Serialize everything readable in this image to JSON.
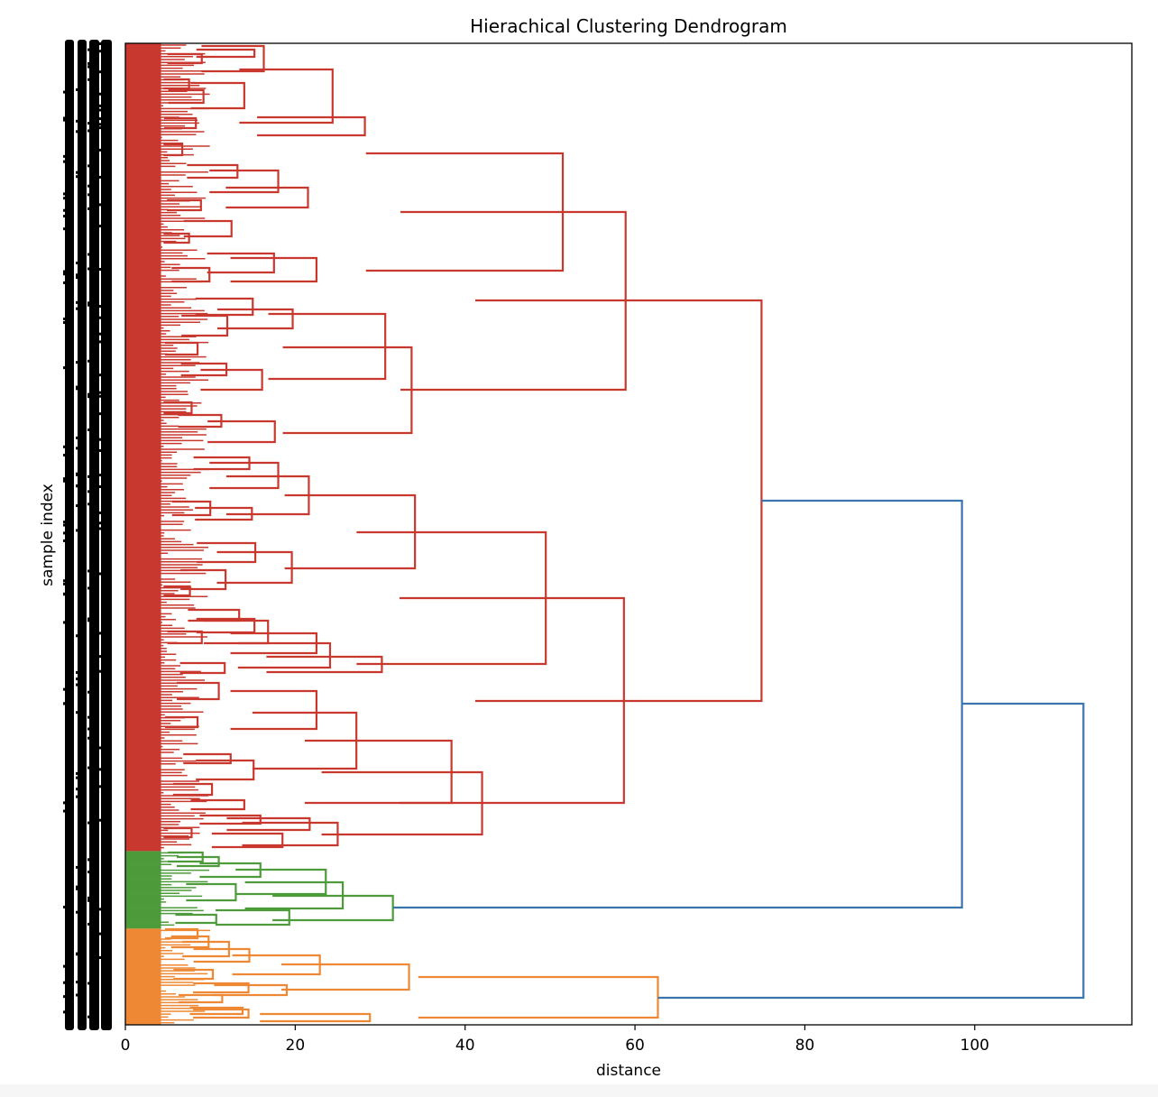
{
  "chart_data": {
    "type": "dendrogram",
    "orientation": "left",
    "title": "Hierachical Clustering Dendrogram",
    "xlabel": "distance",
    "ylabel": "sample index",
    "xlim": [
      0,
      118.5
    ],
    "xticks": [
      0,
      20,
      40,
      60,
      80,
      100
    ],
    "leaf_labels_note": "dense illegible sample index leaf labels on left axis",
    "colors": {
      "cluster_red": "#c8382f",
      "cluster_green": "#4d9b3a",
      "cluster_orange": "#ee8834",
      "above_threshold": "#3a75ad"
    },
    "clusters": [
      {
        "name": "red cluster",
        "color": "#c8382f",
        "leaf_fraction": [
          0.0,
          0.823
        ]
      },
      {
        "name": "green cluster",
        "color": "#4d9b3a",
        "leaf_fraction": [
          0.823,
          0.902
        ]
      },
      {
        "name": "orange cluster",
        "color": "#ee8834",
        "leaf_fraction": [
          0.902,
          1.0
        ]
      }
    ],
    "top_merges": [
      {
        "height": 112.8,
        "joins": [
          "red+green",
          "orange"
        ],
        "color": "#3a75ad"
      },
      {
        "height": 98.5,
        "joins": [
          "red",
          "green"
        ],
        "color": "#3a75ad"
      },
      {
        "height": 74.9,
        "joins": [
          "red sub A",
          "red sub B"
        ],
        "color": "#c8382f"
      },
      {
        "height": 62.7,
        "joins": [
          "orange sub A",
          "orange sub B"
        ],
        "color": "#ee8834"
      },
      {
        "height": 31.5,
        "joins": [
          "green sub A",
          "green sub B"
        ],
        "color": "#4d9b3a"
      }
    ],
    "red_links": [
      [
        15.2,
        55,
        63,
        59
      ],
      [
        16.3,
        51,
        79,
        67
      ],
      [
        24.4,
        77,
        136,
        106
      ],
      [
        14.0,
        92,
        120,
        136
      ],
      [
        28.2,
        150,
        130,
        78
      ],
      [
        51.5,
        170,
        300,
        255
      ],
      [
        58.9,
        235,
        432,
        352
      ],
      [
        13.2,
        183,
        197,
        190
      ],
      [
        18.0,
        189,
        213,
        203
      ],
      [
        21.5,
        208,
        230,
        216
      ],
      [
        12.5,
        245,
        262,
        254
      ],
      [
        17.5,
        281,
        302,
        291
      ],
      [
        22.5,
        286,
        312,
        299
      ],
      [
        15.0,
        331,
        349,
        341
      ],
      [
        19.7,
        343,
        364,
        352
      ],
      [
        30.6,
        348,
        420,
        396
      ],
      [
        12.0,
        350,
        372,
        361
      ],
      [
        11.9,
        403,
        416,
        410
      ],
      [
        16.1,
        410,
        432,
        420
      ],
      [
        33.7,
        385,
        480,
        433
      ],
      [
        11.3,
        460,
        473,
        467
      ],
      [
        17.6,
        467,
        490,
        478
      ],
      [
        14.6,
        507,
        520,
        513
      ],
      [
        18.0,
        513,
        541,
        527
      ],
      [
        21.6,
        528,
        570,
        547
      ],
      [
        14.9,
        563,
        576,
        570
      ],
      [
        34.1,
        549,
        630,
        588
      ],
      [
        15.3,
        602,
        623,
        611
      ],
      [
        19.6,
        612,
        646,
        629
      ],
      [
        11.8,
        632,
        653,
        641
      ],
      [
        49.5,
        590,
        736,
        663
      ],
      [
        13.4,
        676,
        688,
        681
      ],
      [
        15.2,
        686,
        701,
        693
      ],
      [
        16.8,
        688,
        713,
        700
      ],
      [
        22.5,
        702,
        724,
        713
      ],
      [
        24.1,
        713,
        740,
        727
      ],
      [
        30.2,
        728,
        745,
        737
      ],
      [
        11.7,
        735,
        746,
        740
      ],
      [
        58.7,
        663,
        890,
        777
      ],
      [
        74.9,
        333,
        777,
        555
      ],
      [
        11.0,
        757,
        775,
        766
      ],
      [
        22.5,
        766,
        808,
        787
      ],
      [
        27.2,
        790,
        852,
        821
      ],
      [
        12.4,
        836,
        846,
        841
      ],
      [
        15.1,
        843,
        864,
        853
      ],
      [
        38.4,
        821,
        890,
        856
      ],
      [
        14.0,
        887,
        897,
        892
      ],
      [
        15.9,
        904,
        913,
        908
      ],
      [
        21.7,
        907,
        920,
        913
      ],
      [
        25.0,
        912,
        937,
        925
      ],
      [
        18.5,
        924,
        939,
        931
      ],
      [
        42.0,
        856,
        925,
        891
      ],
      [
        9.0,
        60,
        70,
        65
      ],
      [
        7.5,
        88,
        98,
        93
      ],
      [
        9.2,
        100,
        114,
        107
      ],
      [
        8.3,
        131,
        142,
        136
      ],
      [
        6.7,
        160,
        172,
        166
      ],
      [
        8.9,
        222,
        233,
        227
      ],
      [
        7.5,
        259,
        269,
        264
      ],
      [
        9.9,
        297,
        312,
        304
      ],
      [
        8.5,
        380,
        393,
        386
      ],
      [
        7.8,
        446,
        458,
        452
      ],
      [
        10.0,
        556,
        571,
        563
      ],
      [
        7.6,
        650,
        660,
        655
      ],
      [
        9.0,
        700,
        713,
        706
      ],
      [
        8.5,
        795,
        806,
        800
      ],
      [
        10.2,
        869,
        881,
        875
      ],
      [
        7.8,
        918,
        928,
        923
      ]
    ],
    "green_links": [
      [
        11.0,
        950,
        960,
        955
      ],
      [
        15.9,
        957,
        972,
        964
      ],
      [
        23.6,
        964,
        991,
        977
      ],
      [
        13.0,
        980,
        998,
        989
      ],
      [
        25.6,
        978,
        1007,
        993
      ],
      [
        31.5,
        993,
        1020,
        1006
      ],
      [
        19.3,
        1009,
        1025,
        1017
      ],
      [
        10.7,
        1014,
        1023,
        1018
      ],
      [
        9.1,
        945,
        955,
        950
      ]
    ],
    "orange_links": [
      [
        9.8,
        1038,
        1050,
        1044
      ],
      [
        12.2,
        1044,
        1060,
        1052
      ],
      [
        14.6,
        1052,
        1066,
        1059
      ],
      [
        22.9,
        1059,
        1080,
        1069
      ],
      [
        33.4,
        1069,
        1097,
        1083
      ],
      [
        14.5,
        1090,
        1100,
        1095
      ],
      [
        19.0,
        1092,
        1103,
        1097
      ],
      [
        11.4,
        1103,
        1111,
        1107
      ],
      [
        13.8,
        1117,
        1124,
        1120
      ],
      [
        14.5,
        1119,
        1128,
        1123
      ],
      [
        28.8,
        1124,
        1132,
        1128
      ],
      [
        62.7,
        1083,
        1128,
        1106
      ],
      [
        8.5,
        1030,
        1040,
        1035
      ],
      [
        10.3,
        1075,
        1085,
        1080
      ]
    ],
    "blue_links": [
      [
        98.5,
        555,
        1006,
        780
      ],
      [
        112.8,
        780,
        1106,
        943
      ]
    ]
  }
}
